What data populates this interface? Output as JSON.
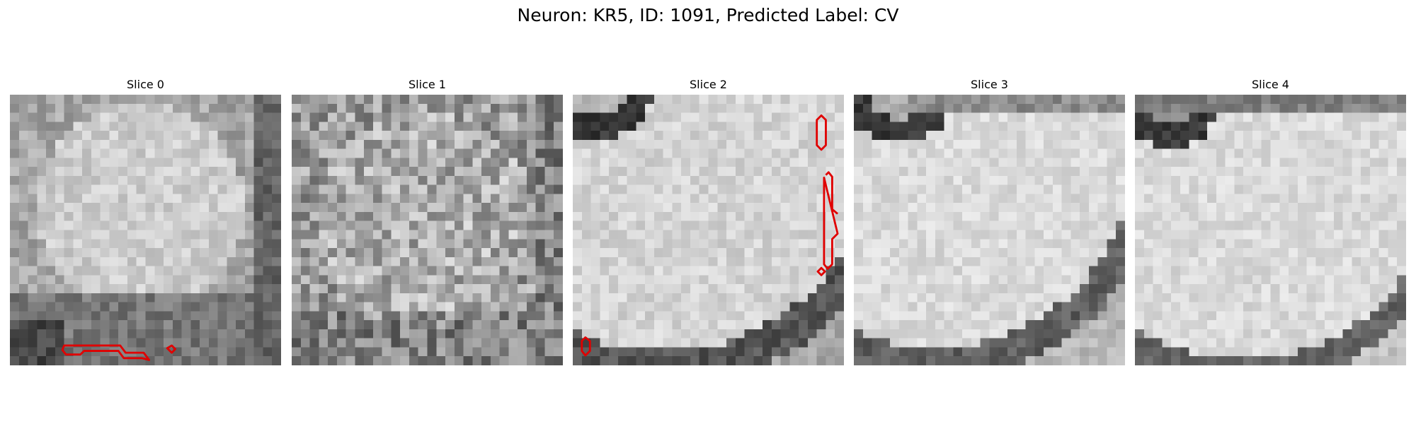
{
  "figure": {
    "title": "Neuron: KR5, ID: 1091, Predicted Label: CV"
  },
  "panels": [
    {
      "title": "Slice 0",
      "pattern": "slice0",
      "seed": 11
    },
    {
      "title": "Slice 1",
      "pattern": "slice1",
      "seed": 23
    },
    {
      "title": "Slice 2",
      "pattern": "slice2",
      "seed": 37
    },
    {
      "title": "Slice 3",
      "pattern": "slice3",
      "seed": 41
    },
    {
      "title": "Slice 4",
      "pattern": "slice4",
      "seed": 53
    }
  ],
  "colors": {
    "contour": "#e00000",
    "text": "#000000"
  }
}
